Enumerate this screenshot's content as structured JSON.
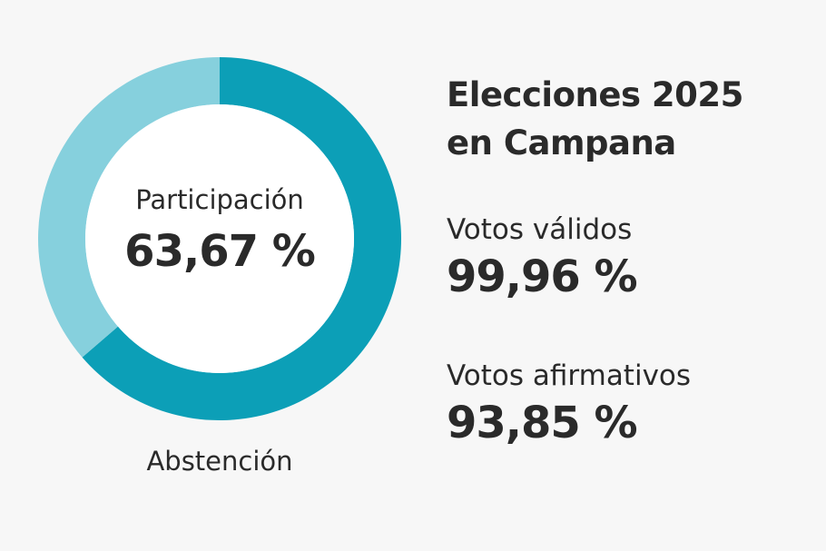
{
  "chart_data": {
    "type": "pie",
    "categories": [
      "Participación",
      "Abstención"
    ],
    "values": [
      63.67,
      36.33
    ],
    "colors": {
      "Participación": "#0c9fb7",
      "Abstención": "#86d0dd"
    },
    "center_label": "Participación",
    "center_value": "63,67 %",
    "outer_label": "Abstención"
  },
  "title": {
    "line1": "Elecciones 2025",
    "line2": "en Campana"
  },
  "stats": [
    {
      "label": "Votos válidos",
      "value": "99,96 %"
    },
    {
      "label": "Votos afirmativos",
      "value": "93,85 %"
    }
  ]
}
